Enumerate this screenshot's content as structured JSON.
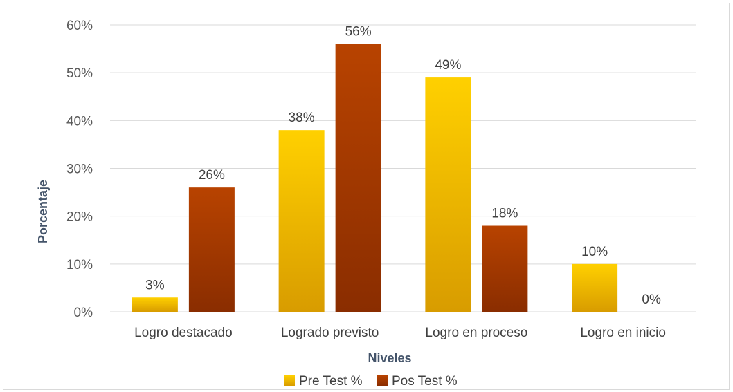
{
  "chart_data": {
    "type": "bar",
    "categories": [
      "Logro destacado",
      "Logrado previsto",
      "Logro en proceso",
      "Logro en inicio"
    ],
    "series": [
      {
        "name": "Pre Test %",
        "values": [
          3,
          38,
          49,
          10
        ],
        "labels": [
          "3%",
          "38%",
          "49%",
          "10%"
        ],
        "color_top": "#ffd000",
        "color_bottom": "#d89c00"
      },
      {
        "name": "Pos Test %",
        "values": [
          26,
          56,
          18,
          0
        ],
        "labels": [
          "26%",
          "56%",
          "18%",
          "0%"
        ],
        "color_top": "#b84300",
        "color_bottom": "#8a2d00"
      }
    ],
    "xlabel": "Niveles",
    "ylabel": "Porcentaje",
    "ylim": [
      0,
      60
    ],
    "yticks": [
      0,
      10,
      20,
      30,
      40,
      50,
      60
    ],
    "ytick_labels": [
      "0%",
      "10%",
      "20%",
      "30%",
      "40%",
      "50%",
      "60%"
    ],
    "grid": true,
    "legend_position": "bottom"
  }
}
